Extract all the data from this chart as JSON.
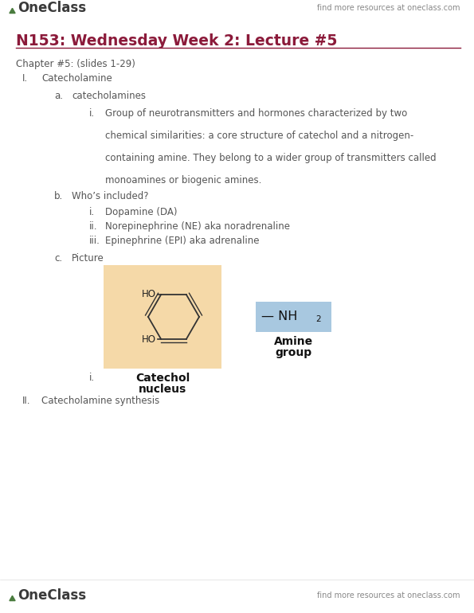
{
  "bg_color": "#ffffff",
  "header_right_text": "find more resources at oneclass.com",
  "header_logo_color": "#3a3a3a",
  "header_logo_leaf_color": "#4a7c3f",
  "title": "N153: Wednesday Week 2: Lecture #5",
  "title_color": "#8b1a3a",
  "rule_color": "#8b1a3a",
  "chapter_text": "Chapter #5: (slides 1-29)",
  "body_color": "#555555",
  "catechol_box_color": "#f5d9a8",
  "amine_box_color": "#a8c8e0",
  "footer_text": "find more resources at oneclass.com"
}
